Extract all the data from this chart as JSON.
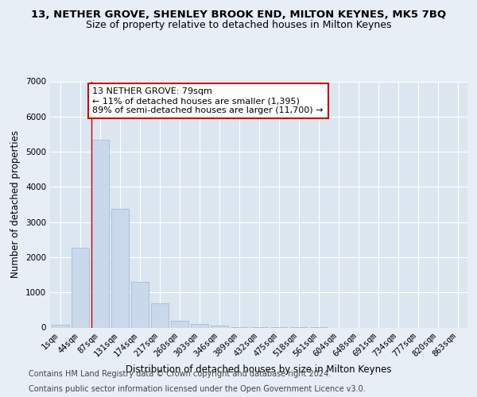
{
  "title_line1": "13, NETHER GROVE, SHENLEY BROOK END, MILTON KEYNES, MK5 7BQ",
  "title_line2": "Size of property relative to detached houses in Milton Keynes",
  "xlabel": "Distribution of detached houses by size in Milton Keynes",
  "ylabel": "Number of detached properties",
  "categories": [
    "1sqm",
    "44sqm",
    "87sqm",
    "131sqm",
    "174sqm",
    "217sqm",
    "260sqm",
    "303sqm",
    "346sqm",
    "389sqm",
    "432sqm",
    "475sqm",
    "518sqm",
    "561sqm",
    "604sqm",
    "648sqm",
    "691sqm",
    "734sqm",
    "777sqm",
    "820sqm",
    "863sqm"
  ],
  "values": [
    70,
    2280,
    5350,
    3380,
    1290,
    690,
    190,
    105,
    55,
    18,
    10,
    5,
    2,
    1,
    0,
    0,
    0,
    0,
    0,
    0,
    0
  ],
  "bar_color": "#c9d9eb",
  "bar_edgecolor": "#9ab4cc",
  "annotation_text": "13 NETHER GROVE: 79sqm\n← 11% of detached houses are smaller (1,395)\n89% of semi-detached houses are larger (11,700) →",
  "annotation_box_color": "#ffffff",
  "annotation_box_edgecolor": "#cc0000",
  "marker_line_color": "#cc0000",
  "ylim": [
    0,
    7000
  ],
  "yticks": [
    0,
    1000,
    2000,
    3000,
    4000,
    5000,
    6000,
    7000
  ],
  "footnote1": "Contains HM Land Registry data © Crown copyright and database right 2024.",
  "footnote2": "Contains public sector information licensed under the Open Government Licence v3.0.",
  "background_color": "#e8eef5",
  "plot_background": "#dce6f0",
  "title_fontsize": 9.5,
  "subtitle_fontsize": 9,
  "axis_label_fontsize": 8.5,
  "tick_fontsize": 7.5,
  "annotation_fontsize": 8,
  "footnote_fontsize": 7
}
